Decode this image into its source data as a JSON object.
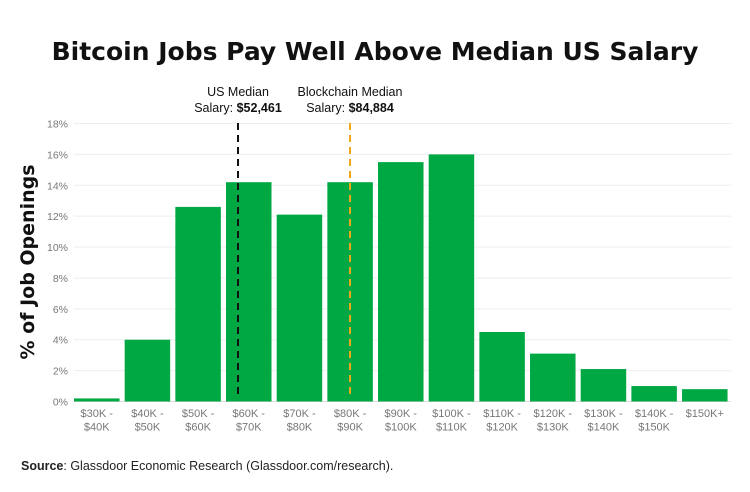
{
  "chart_data": {
    "type": "bar",
    "title": "Bitcoin Jobs Pay Well Above Median US Salary",
    "ylabel": "% of Job Openings",
    "xlabel": "",
    "ylim": [
      0,
      18
    ],
    "yticks": [
      "0%",
      "2%",
      "4%",
      "6%",
      "8%",
      "10%",
      "12%",
      "14%",
      "16%",
      "18%"
    ],
    "grid": true,
    "categories": [
      [
        "$30K -",
        "$40K"
      ],
      [
        "$40K -",
        "$50K"
      ],
      [
        "$50K -",
        "$60K"
      ],
      [
        "$60K -",
        "$70K"
      ],
      [
        "$70K -",
        "$80K"
      ],
      [
        "$80K -",
        "$90K"
      ],
      [
        "$90K -",
        "$100K"
      ],
      [
        "$100K -",
        "$110K"
      ],
      [
        "$110K -",
        "$120K"
      ],
      [
        "$120K -",
        "$130K"
      ],
      [
        "$130K -",
        "$140K"
      ],
      [
        "$140K -",
        "$150K"
      ],
      [
        "$150K+"
      ]
    ],
    "values": [
      0.2,
      4.0,
      12.6,
      14.2,
      12.1,
      14.2,
      15.5,
      16.0,
      4.5,
      3.1,
      2.1,
      1.0,
      0.8
    ],
    "bar_color": "#00a843",
    "annotations": [
      {
        "line1": "US Median",
        "prefix": "Salary: ",
        "value": "$52,461",
        "color": "#111111",
        "style": "dashed"
      },
      {
        "line1": "Blockchain Median",
        "prefix": "Salary: ",
        "value": "$84,884",
        "color": "#f0a818",
        "style": "dashed"
      }
    ],
    "source_label": "Source",
    "source_text": ": Glassdoor Economic Research (Glassdoor.com/research)."
  }
}
